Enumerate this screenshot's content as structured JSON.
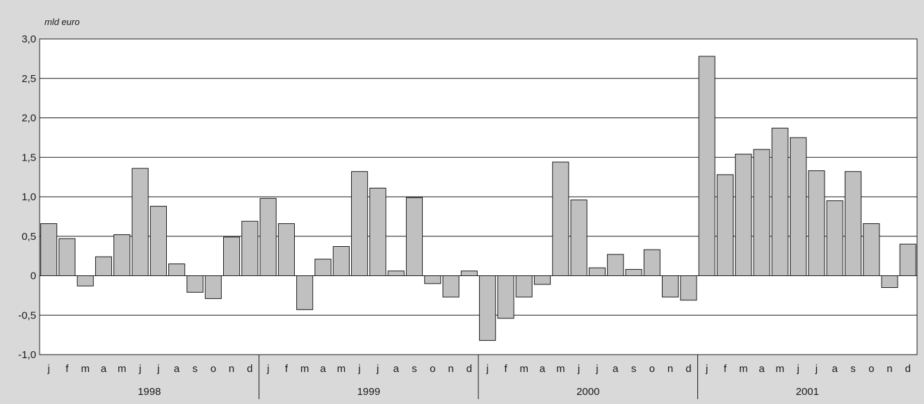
{
  "chart_data": {
    "type": "bar",
    "title": "",
    "ylabel": "mld euro",
    "xlabel": "",
    "ylim": [
      -1.0,
      3.0
    ],
    "yticks": [
      "3,0",
      "2,5",
      "2,0",
      "1,5",
      "1,0",
      "0,5",
      "0",
      "-0,5",
      "-1,0"
    ],
    "ytick_values": [
      3.0,
      2.5,
      2.0,
      1.5,
      1.0,
      0.5,
      0,
      -0.5,
      -1.0
    ],
    "grid": true,
    "bar_color": "#c0c0c0",
    "background": "#d9d9d9",
    "plot_background": "#ffffff",
    "month_labels": [
      "j",
      "f",
      "m",
      "a",
      "m",
      "j",
      "j",
      "a",
      "s",
      "o",
      "n",
      "d"
    ],
    "groups": [
      {
        "year": "1998",
        "values": [
          0.66,
          0.47,
          -0.13,
          0.24,
          0.52,
          1.36,
          0.88,
          0.15,
          -0.21,
          -0.29,
          0.49,
          0.69
        ]
      },
      {
        "year": "1999",
        "values": [
          0.98,
          0.66,
          -0.43,
          0.21,
          0.37,
          1.32,
          1.11,
          0.06,
          0.99,
          -0.1,
          -0.27,
          0.06
        ]
      },
      {
        "year": "2000",
        "values": [
          -0.82,
          -0.54,
          -0.27,
          -0.11,
          1.44,
          0.96,
          0.1,
          0.27,
          0.08,
          0.33,
          -0.27,
          -0.31
        ]
      },
      {
        "year": "2001",
        "values": [
          2.78,
          1.28,
          1.54,
          1.6,
          1.87,
          1.75,
          1.33,
          0.95,
          1.32,
          0.66,
          -0.15,
          0.4
        ]
      }
    ]
  }
}
